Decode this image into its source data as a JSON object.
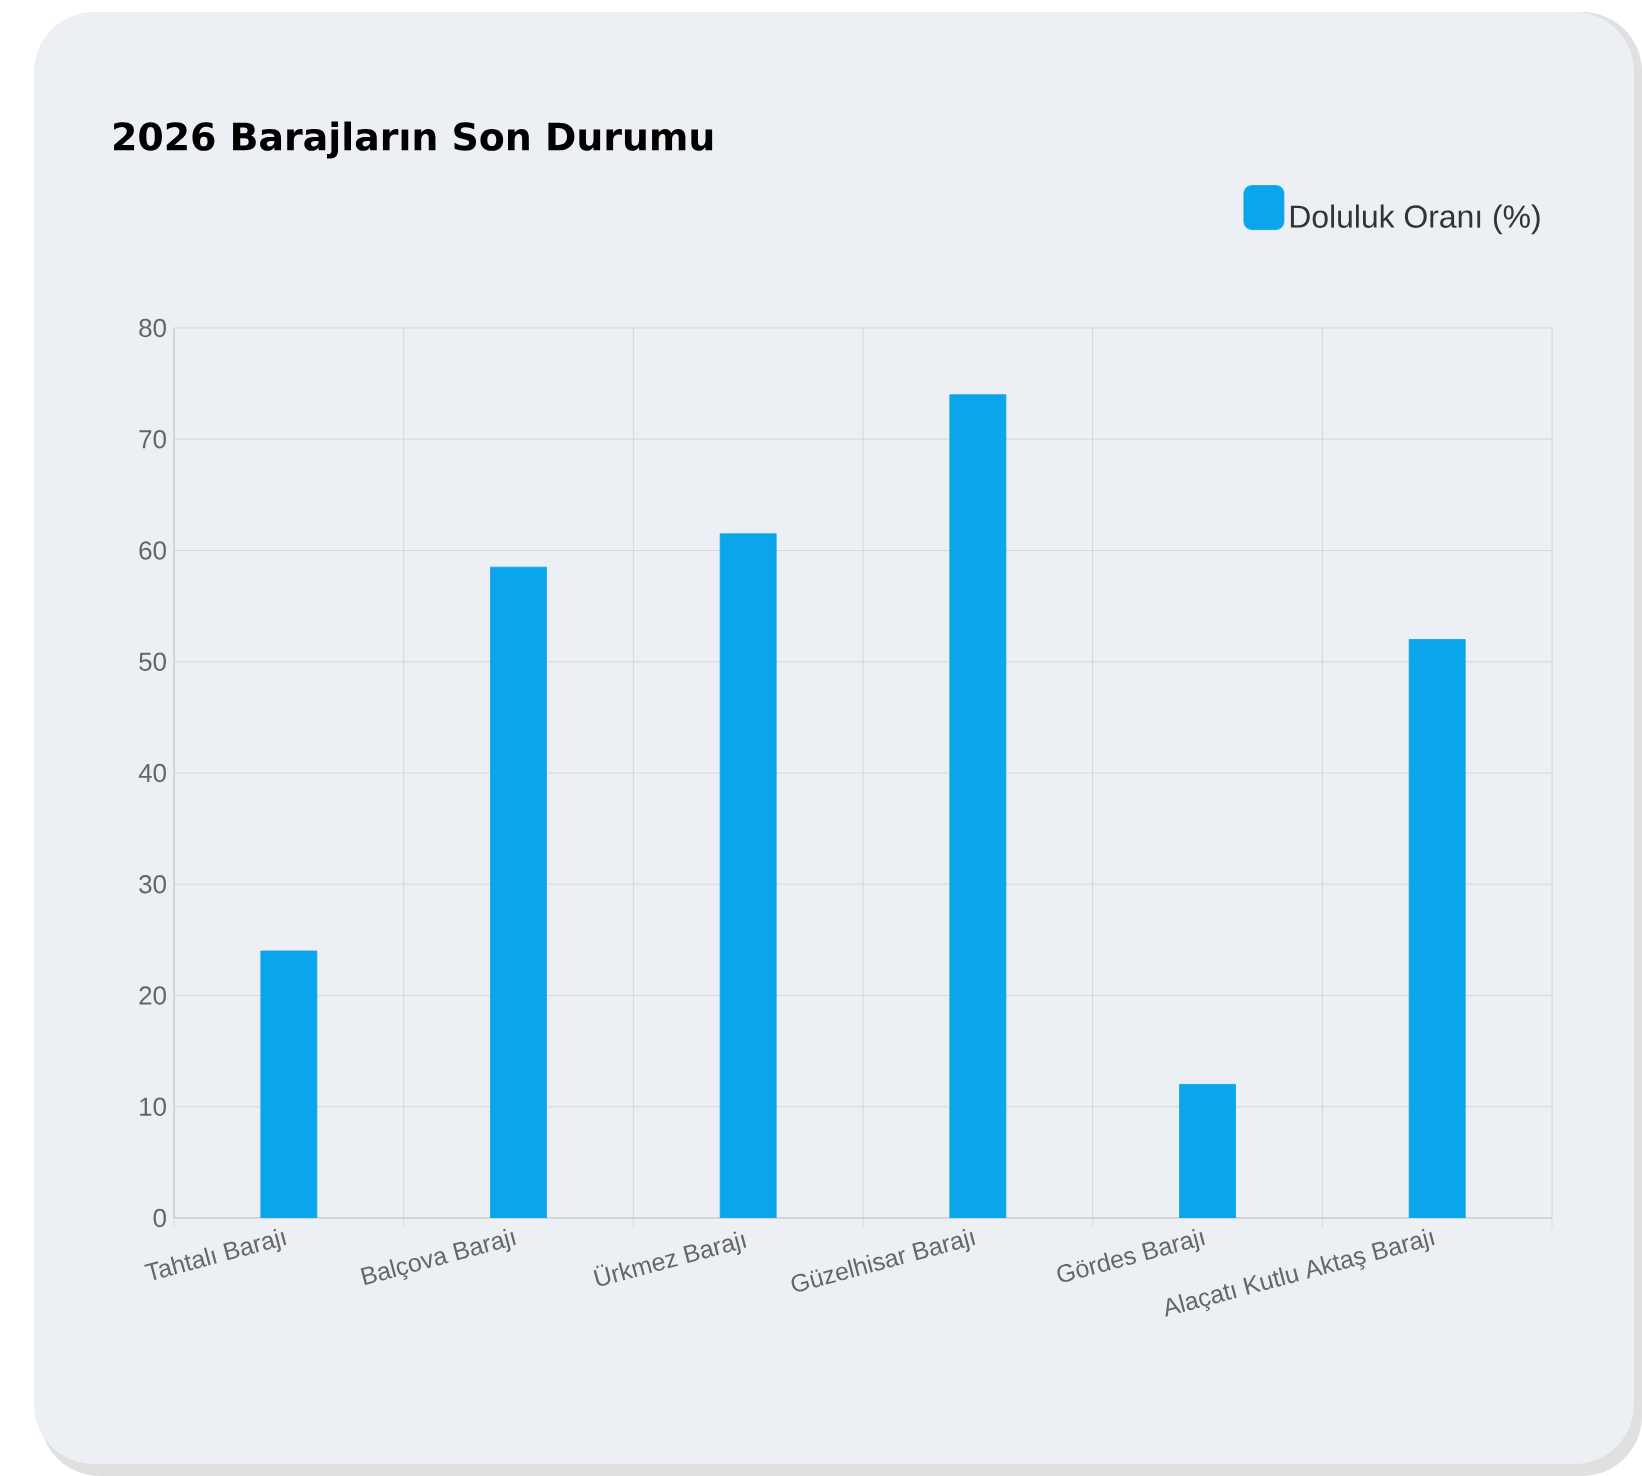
{
  "chart_data": {
    "type": "bar",
    "title": "2026 Barajların Son Durumu",
    "categories": [
      "Tahtalı Barajı",
      "Balçova Barajı",
      "Ürkmez Barajı",
      "Güzelhisar Barajı",
      "Gördes Barajı",
      "Alaçatı Kutlu Aktaş Barajı"
    ],
    "series": [
      {
        "name": "Doluluk Oranı (%)",
        "color": "#0aa5ea",
        "values": [
          24,
          58.5,
          61.5,
          74,
          12,
          52
        ]
      }
    ],
    "ylim": [
      0,
      80
    ],
    "yticks": [
      0,
      10,
      20,
      30,
      40,
      50,
      60,
      70,
      80
    ],
    "grid": true,
    "legend": "top right"
  }
}
